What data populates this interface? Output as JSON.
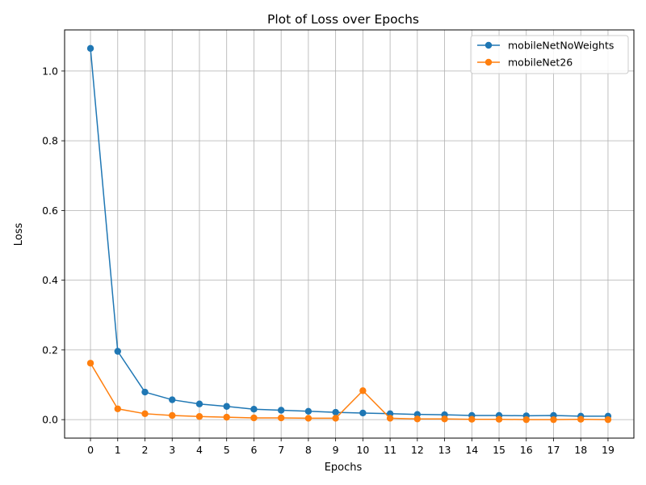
{
  "chart_data": {
    "type": "line",
    "title": "Plot of Loss over Epochs",
    "xlabel": "Epochs",
    "ylabel": "Loss",
    "x": [
      0,
      1,
      2,
      3,
      4,
      5,
      6,
      7,
      8,
      9,
      10,
      11,
      12,
      13,
      14,
      15,
      16,
      17,
      18,
      19
    ],
    "xticks": [
      "0",
      "1",
      "2",
      "3",
      "4",
      "5",
      "6",
      "7",
      "8",
      "9",
      "10",
      "11",
      "12",
      "13",
      "14",
      "15",
      "16",
      "17",
      "18",
      "19"
    ],
    "yticks": [
      0.0,
      0.2,
      0.4,
      0.6,
      0.8,
      1.0
    ],
    "ytick_labels": [
      "0.0",
      "0.2",
      "0.4",
      "0.6",
      "0.8",
      "1.0"
    ],
    "xlim": [
      -0.95,
      19.95
    ],
    "ylim": [
      -0.053,
      1.118
    ],
    "grid": true,
    "legend_position": "top-right",
    "series": [
      {
        "name": "mobileNetNoWeights",
        "color": "#1f77b4",
        "values": [
          1.065,
          0.196,
          0.079,
          0.057,
          0.045,
          0.038,
          0.03,
          0.027,
          0.024,
          0.021,
          0.019,
          0.017,
          0.015,
          0.014,
          0.012,
          0.012,
          0.011,
          0.012,
          0.01,
          0.01
        ]
      },
      {
        "name": "mobileNet26",
        "color": "#ff7f0e",
        "values": [
          0.162,
          0.031,
          0.017,
          0.012,
          0.009,
          0.007,
          0.005,
          0.005,
          0.004,
          0.004,
          0.083,
          0.004,
          0.002,
          0.002,
          0.001,
          0.001,
          0.0,
          0.0,
          0.001,
          0.0
        ]
      }
    ]
  }
}
